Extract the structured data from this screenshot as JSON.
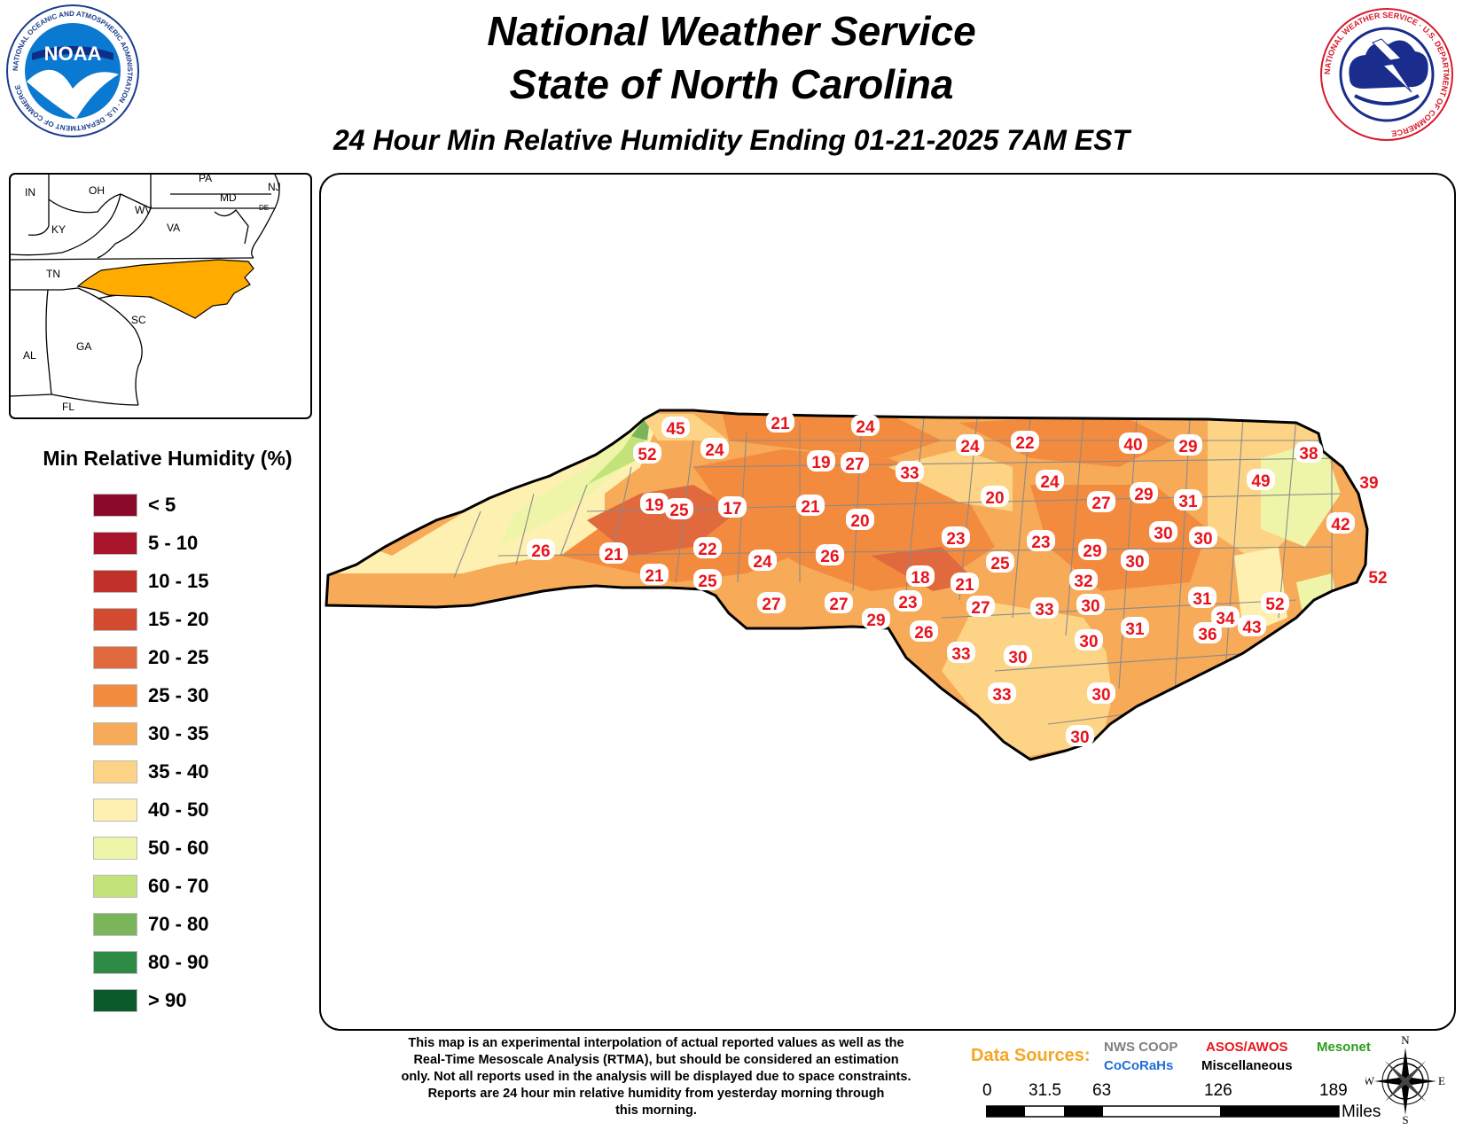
{
  "header": {
    "title_line1": "National Weather Service",
    "title_line2": "State of North Carolina",
    "subtitle": "24 Hour Min Relative Humidity Ending 01-21-2025 7AM EST"
  },
  "logos": {
    "noaa_text": "NOAA",
    "noaa_ring": "NATIONAL OCEANIC AND ATMOSPHERIC ADMINISTRATION · U.S. DEPARTMENT OF COMMERCE",
    "nws_ring": "NATIONAL WEATHER SERVICE · U.S. DEPARTMENT OF COMMERCE"
  },
  "inset_map": {
    "highlight_color": "#ffab00",
    "labels": [
      "IN",
      "OH",
      "PA",
      "NJ",
      "MD",
      "DE",
      "WV",
      "VA",
      "KY",
      "TN",
      "SC",
      "GA",
      "AL",
      "FL"
    ]
  },
  "legend": {
    "title": "Min Relative Humidity (%)",
    "items": [
      {
        "label": "< 5",
        "color": "#8b0a2a"
      },
      {
        "label": "5 - 10",
        "color": "#a8142a"
      },
      {
        "label": "10 - 15",
        "color": "#c2302a"
      },
      {
        "label": "15 - 20",
        "color": "#d24a30"
      },
      {
        "label": "20 - 25",
        "color": "#e06a3e"
      },
      {
        "label": "25 - 30",
        "color": "#f38b3f"
      },
      {
        "label": "30 - 35",
        "color": "#f7aa58"
      },
      {
        "label": "35 - 40",
        "color": "#fdd486"
      },
      {
        "label": "40 - 50",
        "color": "#fdf0b0"
      },
      {
        "label": "50 - 60",
        "color": "#eef5a8"
      },
      {
        "label": "60 - 70",
        "color": "#c3e37a"
      },
      {
        "label": "70 - 80",
        "color": "#7ab55c"
      },
      {
        "label": "80 - 90",
        "color": "#2e8b45"
      },
      {
        "label": "> 90",
        "color": "#0a5a2e"
      }
    ]
  },
  "stations": [
    "45",
    "21",
    "24",
    "52",
    "24",
    "24",
    "22",
    "40",
    "29",
    "19",
    "27",
    "33",
    "38",
    "24",
    "49",
    "39",
    "19",
    "25",
    "17",
    "21",
    "20",
    "27",
    "29",
    "31",
    "20",
    "30",
    "30",
    "42",
    "23",
    "23",
    "26",
    "21",
    "22",
    "29",
    "24",
    "26",
    "25",
    "30",
    "52",
    "21",
    "25",
    "18",
    "21",
    "32",
    "27",
    "23",
    "33",
    "30",
    "27",
    "27",
    "31",
    "31",
    "52",
    "29",
    "26",
    "34",
    "33",
    "30",
    "36",
    "43",
    "30",
    "33",
    "30",
    "30"
  ],
  "disclaimer": [
    "This map is an experimental interpolation of actual reported values as well as the",
    "Real-Time Mesoscale Analysis (RTMA), but should be considered an estimation",
    "only. Not all reports used in the analysis will be displayed due to space constraints.",
    "Reports are 24 hour min relative humidity from yesterday morning through",
    "this morning."
  ],
  "data_sources": {
    "label": "Data Sources:",
    "nws_coop": "NWS COOP",
    "asos_awos": "ASOS/AWOS",
    "mesonet": "Mesonet",
    "cocorahs": "CoCoRaHs",
    "misc": "Miscellaneous"
  },
  "scale": {
    "ticks": [
      "0",
      "31.5",
      "63",
      "126",
      "189"
    ],
    "unit": "Miles"
  },
  "compass": {
    "n": "N",
    "s": "S",
    "e": "E",
    "w": "W"
  }
}
